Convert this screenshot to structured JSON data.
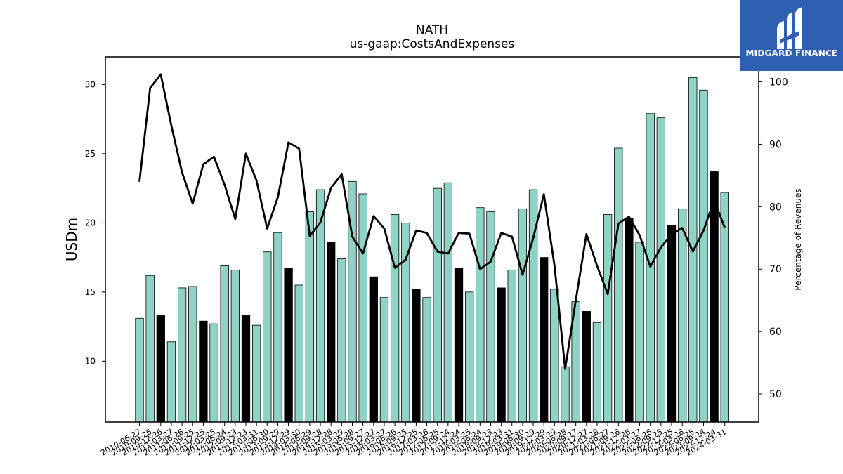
{
  "chart_data": {
    "type": "bar",
    "title": "NATH",
    "subtitle": "us-gaap:CostsAndExpenses",
    "ylabel": "USDm",
    "y2label": "Percentage of Revenues",
    "ylim": [
      5.6,
      32
    ],
    "y2lim": [
      45.5,
      104
    ],
    "yticks": [
      10,
      15,
      20,
      25,
      30
    ],
    "y2ticks": [
      50,
      60,
      70,
      80,
      90,
      100
    ],
    "colors": {
      "bar": "#8fd3c6",
      "highlight_bar": "#000000",
      "line": "#000000"
    },
    "categories": [
      "2010-06-27",
      "2010-09-26",
      "2010-12-26",
      "2011-03-27",
      "2011-06-26",
      "2011-09-25",
      "2011-12-25",
      "2012-03-25",
      "2012-06-24",
      "2012-09-23",
      "2012-12-23",
      "2013-03-31",
      "2013-06-30",
      "2013-09-29",
      "2013-12-29",
      "2014-03-30",
      "2014-06-29",
      "2014-09-28",
      "2014-12-28",
      "2015-03-29",
      "2015-06-28",
      "2015-09-27",
      "2015-12-27",
      "2016-03-27",
      "2016-06-26",
      "2016-09-25",
      "2016-12-25",
      "2017-03-26",
      "2017-06-25",
      "2017-09-24",
      "2017-12-24",
      "2018-03-25",
      "2018-06-24",
      "2018-09-23",
      "2018-12-23",
      "2019-03-31",
      "2019-06-30",
      "2019-09-29",
      "2019-12-29",
      "2020-03-29",
      "2020-06-28",
      "2020-09-27",
      "2020-12-27",
      "2021-03-28",
      "2021-06-27",
      "2021-09-26",
      "2021-12-26",
      "2022-03-27",
      "2022-06-26",
      "2022-09-25",
      "2022-12-25",
      "2023-03-26",
      "2023-06-25",
      "2023-09-24",
      "2023-12-24",
      "2024-03-31"
    ],
    "values": [
      13.1,
      16.2,
      13.3,
      11.4,
      15.3,
      15.4,
      12.9,
      12.7,
      16.9,
      16.6,
      13.3,
      12.6,
      17.9,
      19.3,
      16.7,
      15.5,
      20.8,
      22.4,
      18.6,
      17.4,
      23.0,
      22.1,
      16.1,
      14.6,
      20.6,
      20.0,
      15.2,
      14.6,
      22.5,
      22.9,
      16.7,
      15.0,
      21.1,
      20.8,
      15.3,
      16.6,
      21.0,
      22.4,
      17.5,
      15.2,
      9.6,
      14.3,
      13.6,
      12.8,
      20.6,
      25.4,
      20.3,
      18.6,
      27.9,
      27.6,
      19.8,
      21.0,
      30.5,
      29.6,
      23.7,
      22.2
    ],
    "highlight": [
      false,
      false,
      true,
      false,
      false,
      false,
      true,
      false,
      false,
      false,
      true,
      false,
      false,
      false,
      true,
      false,
      false,
      false,
      true,
      false,
      false,
      false,
      true,
      false,
      false,
      false,
      true,
      false,
      false,
      false,
      true,
      false,
      false,
      false,
      true,
      false,
      false,
      false,
      true,
      false,
      false,
      false,
      true,
      false,
      false,
      false,
      true,
      false,
      false,
      false,
      true,
      false,
      false,
      false,
      true,
      false
    ],
    "line_values": [
      84,
      99,
      101.2,
      93,
      85.5,
      80.5,
      86.8,
      88,
      83.5,
      78,
      88.5,
      84.2,
      76.5,
      81.5,
      90.3,
      89.3,
      75.3,
      77.5,
      83,
      85.2,
      75.2,
      72.5,
      78.5,
      76.5,
      70.2,
      71.5,
      76.2,
      75.8,
      72.8,
      72.5,
      75.8,
      75.7,
      70,
      71.2,
      75.8,
      75.2,
      69.1,
      75,
      82,
      70.5,
      54,
      65,
      75.6,
      70.5,
      66,
      77.3,
      78.4,
      75.4,
      70.4,
      73.5,
      75.6,
      76.6,
      72.8,
      76.2,
      81,
      76.6
    ]
  },
  "logo": {
    "text": "MIDGARD FINANCE"
  }
}
